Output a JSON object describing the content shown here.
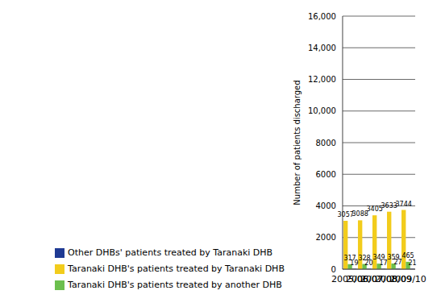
{
  "chart_data": {
    "type": "bar",
    "y_label": "Number of patients discharged",
    "categories": [
      "2005/06",
      "2006/07",
      "2007/08",
      "2008/09",
      "2009/10"
    ],
    "series": [
      {
        "name": "Taranaki DHB's patients treated by Taranaki DHB",
        "color": "#f2cc1c",
        "values": [
          3057,
          3088,
          3405,
          3633,
          3744
        ]
      },
      {
        "name": "Taranaki DHB's patients treated by another DHB",
        "color": "#6cbf4e",
        "values": [
          317,
          328,
          349,
          359,
          465
        ]
      },
      {
        "name": "Other DHBs' patients treated by Taranaki DHB",
        "color": "#1f3a93",
        "values": [
          19,
          20,
          17,
          27,
          21
        ]
      }
    ],
    "ylim": [
      0,
      16000
    ],
    "yticks": [
      0,
      2000,
      4000,
      6000,
      8000,
      {
        "value": 10000,
        "label": "10,000"
      },
      {
        "value": 12000,
        "label": "12,000"
      },
      {
        "value": 14000,
        "label": "14,000"
      },
      {
        "value": 16000,
        "label": "16,000"
      }
    ],
    "grid": true,
    "data_labels": true,
    "legend": "bottom-left"
  }
}
